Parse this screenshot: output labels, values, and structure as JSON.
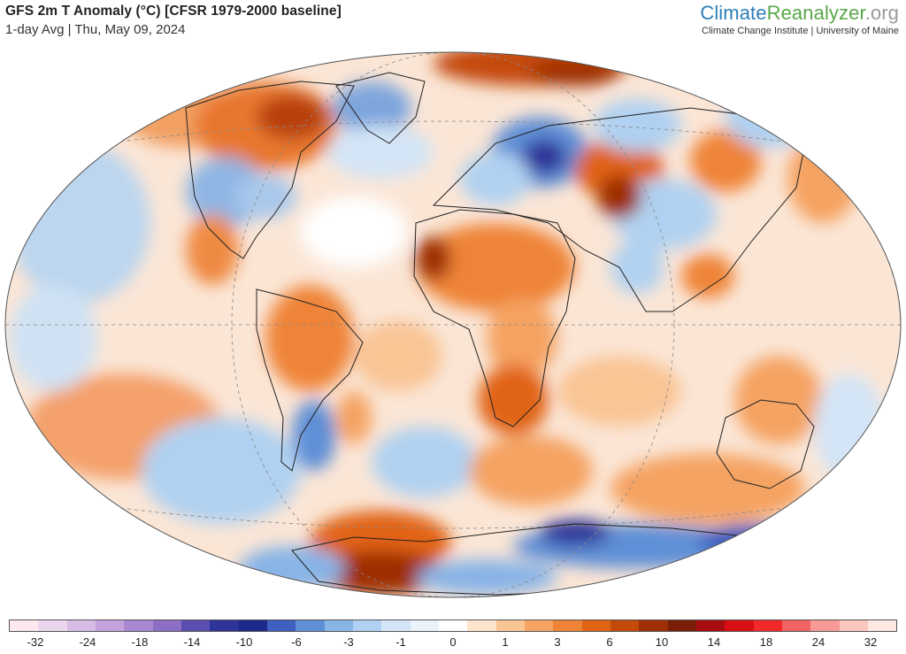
{
  "header": {
    "title": "GFS 2m T Anomaly (°C) [CFSR 1979-2000 baseline]",
    "subtitle": "1-day Avg | Thu, May 09, 2024"
  },
  "brand": {
    "part1": "Climate",
    "part2": "Reanalyzer",
    "part3": ".org",
    "institute": "Climate Change Institute | University of Maine"
  },
  "colorbar": {
    "colors": [
      "#fde8ef",
      "#ead7ee",
      "#d7bde6",
      "#c3a2dd",
      "#a987d1",
      "#8c6ec4",
      "#5a4fb0",
      "#2f3499",
      "#1d2a8a",
      "#3c5fc0",
      "#5f8fd6",
      "#88b4e6",
      "#b0d1f1",
      "#d3e5f7",
      "#eaf2fb",
      "#ffffff",
      "#fde4cc",
      "#f9c595",
      "#f5a362",
      "#ef8437",
      "#e16416",
      "#c44a0a",
      "#9e2f06",
      "#7a1d06",
      "#a80d10",
      "#d81016",
      "#f2282a",
      "#f26464",
      "#f79a96",
      "#fbc6bd",
      "#fde8e2"
    ],
    "tick_labels": [
      "-32",
      "-24",
      "-18",
      "-14",
      "-10",
      "-6",
      "-3",
      "-1",
      "0",
      "1",
      "3",
      "6",
      "10",
      "14",
      "18",
      "24",
      "32"
    ]
  }
}
